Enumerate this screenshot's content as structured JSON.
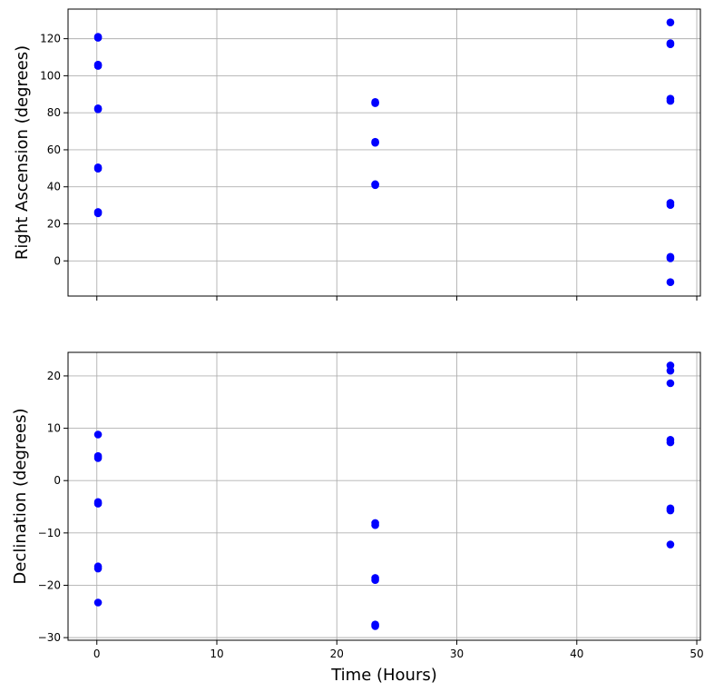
{
  "chart_data": [
    {
      "type": "scatter",
      "xlabel": "",
      "ylabel": "Right Ascension (degrees)",
      "xlim": [
        -2.4,
        50.3
      ],
      "ylim": [
        -19,
        136
      ],
      "xticks": [
        0,
        10,
        20,
        30,
        40,
        50
      ],
      "show_xtick_labels": false,
      "yticks": [
        0,
        20,
        40,
        60,
        80,
        100,
        120
      ],
      "ytick_labels": [
        "0",
        "20",
        "40",
        "60",
        "80",
        "100",
        "120"
      ],
      "grid": true,
      "marker_color": "#0000ff",
      "points": [
        [
          0.1,
          121
        ],
        [
          0.1,
          120.5
        ],
        [
          0.1,
          106
        ],
        [
          0.1,
          105.3
        ],
        [
          0.1,
          82.4
        ],
        [
          0.1,
          81.9
        ],
        [
          0.1,
          50.5
        ],
        [
          0.1,
          49.8
        ],
        [
          0.1,
          26.4
        ],
        [
          0.1,
          25.7
        ],
        [
          23.2,
          85.8
        ],
        [
          23.2,
          85.2
        ],
        [
          23.2,
          64.3
        ],
        [
          23.2,
          63.8
        ],
        [
          23.2,
          41.4
        ],
        [
          23.2,
          40.9
        ],
        [
          47.8,
          128.8
        ],
        [
          47.8,
          117.6
        ],
        [
          47.8,
          117
        ],
        [
          47.8,
          87.6
        ],
        [
          47.8,
          86.4
        ],
        [
          47.8,
          31.3
        ],
        [
          47.8,
          30.2
        ],
        [
          47.8,
          2.2
        ],
        [
          47.8,
          1.4
        ],
        [
          47.8,
          -11.5
        ]
      ]
    },
    {
      "type": "scatter",
      "xlabel": "Time (Hours)",
      "ylabel": "Declination (degrees)",
      "xlim": [
        -2.4,
        50.3
      ],
      "ylim": [
        -30.5,
        24.5
      ],
      "xticks": [
        0,
        10,
        20,
        30,
        40,
        50
      ],
      "xtick_labels": [
        "0",
        "10",
        "20",
        "30",
        "40",
        "50"
      ],
      "show_xtick_labels": true,
      "yticks": [
        -30,
        -20,
        -10,
        0,
        10,
        20
      ],
      "ytick_labels": [
        "−30",
        "−20",
        "−10",
        "0",
        "10",
        "20"
      ],
      "grid": true,
      "marker_color": "#0000ff",
      "points": [
        [
          0.1,
          8.8
        ],
        [
          0.1,
          4.7
        ],
        [
          0.1,
          4.3
        ],
        [
          0.1,
          -4.1
        ],
        [
          0.1,
          -4.4
        ],
        [
          0.1,
          -16.4
        ],
        [
          0.1,
          -16.8
        ],
        [
          0.1,
          -23.3
        ],
        [
          23.2,
          -8.1
        ],
        [
          23.2,
          -8.5
        ],
        [
          23.2,
          -18.6
        ],
        [
          23.2,
          -19
        ],
        [
          23.2,
          -27.5
        ],
        [
          23.2,
          -27.8
        ],
        [
          47.8,
          22
        ],
        [
          47.8,
          21
        ],
        [
          47.8,
          18.6
        ],
        [
          47.8,
          7.8
        ],
        [
          47.8,
          7.3
        ],
        [
          47.8,
          -5.3
        ],
        [
          47.8,
          -5.7
        ],
        [
          47.8,
          -12.2
        ]
      ]
    }
  ]
}
